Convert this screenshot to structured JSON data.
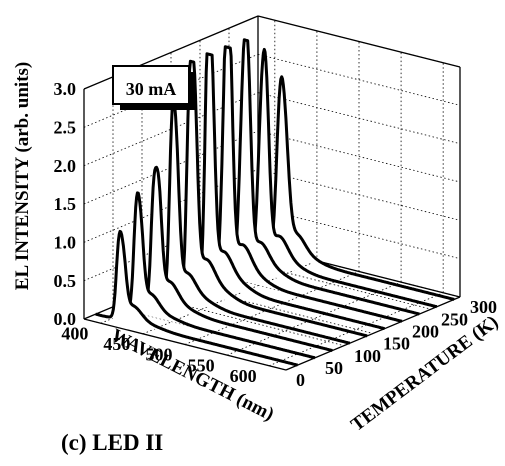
{
  "chart_data": {
    "type": "line",
    "projection": "3d-waterfall",
    "zlabel": "EL  INTENSITY  (arb. units)",
    "xlabel": "WAVELENGTH (nm)",
    "ylabel": "TEMPERATURE (K)",
    "zlim": [
      0,
      3.0
    ],
    "xlim": [
      380,
      620
    ],
    "ylim": [
      0,
      300
    ],
    "zticks": [
      "0.0",
      "0.5",
      "1.0",
      "1.5",
      "2.0",
      "2.5",
      "3.0"
    ],
    "xticks": [
      "400",
      "450",
      "500",
      "550",
      "600"
    ],
    "yticks": [
      "0",
      "50",
      "100",
      "150",
      "200",
      "250",
      "300"
    ],
    "grid": true,
    "annotation": "30 mA",
    "caption": "(c) LED II",
    "series": [
      {
        "temperature": 20,
        "peaks": [
          {
            "center": 407,
            "height": 0.6,
            "width": 3
          },
          {
            "center": 412,
            "height": 0.8,
            "width": 4
          },
          {
            "center": 424,
            "height": 0.2,
            "width": 10
          }
        ]
      },
      {
        "temperature": 50,
        "peaks": [
          {
            "center": 407,
            "height": 0.8,
            "width": 3
          },
          {
            "center": 412,
            "height": 1.1,
            "width": 4
          },
          {
            "center": 424,
            "height": 0.25,
            "width": 10
          }
        ]
      },
      {
        "temperature": 80,
        "peaks": [
          {
            "center": 407,
            "height": 1.0,
            "width": 3
          },
          {
            "center": 413,
            "height": 1.45,
            "width": 4
          },
          {
            "center": 426,
            "height": 0.3,
            "width": 10
          }
        ]
      },
      {
        "temperature": 110,
        "peaks": [
          {
            "center": 408,
            "height": 1.3,
            "width": 3
          },
          {
            "center": 413,
            "height": 1.9,
            "width": 4
          },
          {
            "center": 426,
            "height": 0.3,
            "width": 10
          }
        ]
      },
      {
        "temperature": 140,
        "peaks": [
          {
            "center": 408,
            "height": 1.7,
            "width": 3
          },
          {
            "center": 414,
            "height": 2.6,
            "width": 4
          },
          {
            "center": 428,
            "height": 0.35,
            "width": 10
          }
        ]
      },
      {
        "temperature": 170,
        "peaks": [
          {
            "center": 409,
            "height": 1.9,
            "width": 3
          },
          {
            "center": 414,
            "height": 2.7,
            "width": 4
          },
          {
            "center": 428,
            "height": 0.35,
            "width": 10
          }
        ]
      },
      {
        "temperature": 200,
        "peaks": [
          {
            "center": 410,
            "height": 2.0,
            "width": 4
          },
          {
            "center": 415,
            "height": 2.55,
            "width": 4
          },
          {
            "center": 430,
            "height": 0.35,
            "width": 10
          }
        ]
      },
      {
        "temperature": 230,
        "peaks": [
          {
            "center": 410,
            "height": 1.8,
            "width": 4
          },
          {
            "center": 416,
            "height": 2.3,
            "width": 4
          },
          {
            "center": 430,
            "height": 0.3,
            "width": 10
          }
        ]
      },
      {
        "temperature": 260,
        "peaks": [
          {
            "center": 411,
            "height": 1.5,
            "width": 4
          },
          {
            "center": 417,
            "height": 2.0,
            "width": 4
          },
          {
            "center": 432,
            "height": 0.3,
            "width": 10
          }
        ]
      },
      {
        "temperature": 290,
        "peaks": [
          {
            "center": 412,
            "height": 1.2,
            "width": 4
          },
          {
            "center": 418,
            "height": 1.6,
            "width": 5
          },
          {
            "center": 432,
            "height": 0.25,
            "width": 10
          }
        ]
      }
    ]
  }
}
